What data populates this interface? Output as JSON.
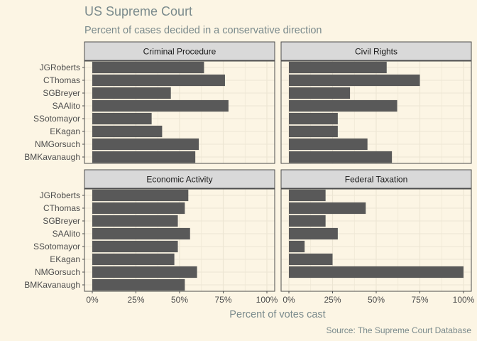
{
  "chart_data": {
    "type": "bar",
    "orientation": "horizontal",
    "title": "US Supreme Court",
    "subtitle": "Percent of cases decided in a conservative direction",
    "xlabel": "Percent of votes cast",
    "ylabel": "",
    "caption": "Source: The Supreme Court Database",
    "xlim": [
      0,
      1
    ],
    "x_ticks": [
      "0%",
      "25%",
      "50%",
      "75%",
      "100%"
    ],
    "grid": true,
    "categories": [
      "JGRoberts",
      "CThomas",
      "SGBreyer",
      "SAAlito",
      "SSotomayor",
      "EKagan",
      "NMGorsuch",
      "BMKavanaugh"
    ],
    "bar_color": "#595959",
    "panels": [
      {
        "name": "Criminal Procedure",
        "values": [
          0.64,
          0.76,
          0.45,
          0.78,
          0.34,
          0.4,
          0.61,
          0.59
        ]
      },
      {
        "name": "Civil Rights",
        "values": [
          0.56,
          0.75,
          0.35,
          0.62,
          0.28,
          0.28,
          0.45,
          0.59
        ]
      },
      {
        "name": "Economic Activity",
        "values": [
          0.55,
          0.53,
          0.49,
          0.56,
          0.49,
          0.47,
          0.6,
          0.53
        ]
      },
      {
        "name": "Federal Taxation",
        "values": [
          0.21,
          0.44,
          0.21,
          0.28,
          0.09,
          0.25,
          1.0,
          0.0
        ]
      }
    ]
  }
}
